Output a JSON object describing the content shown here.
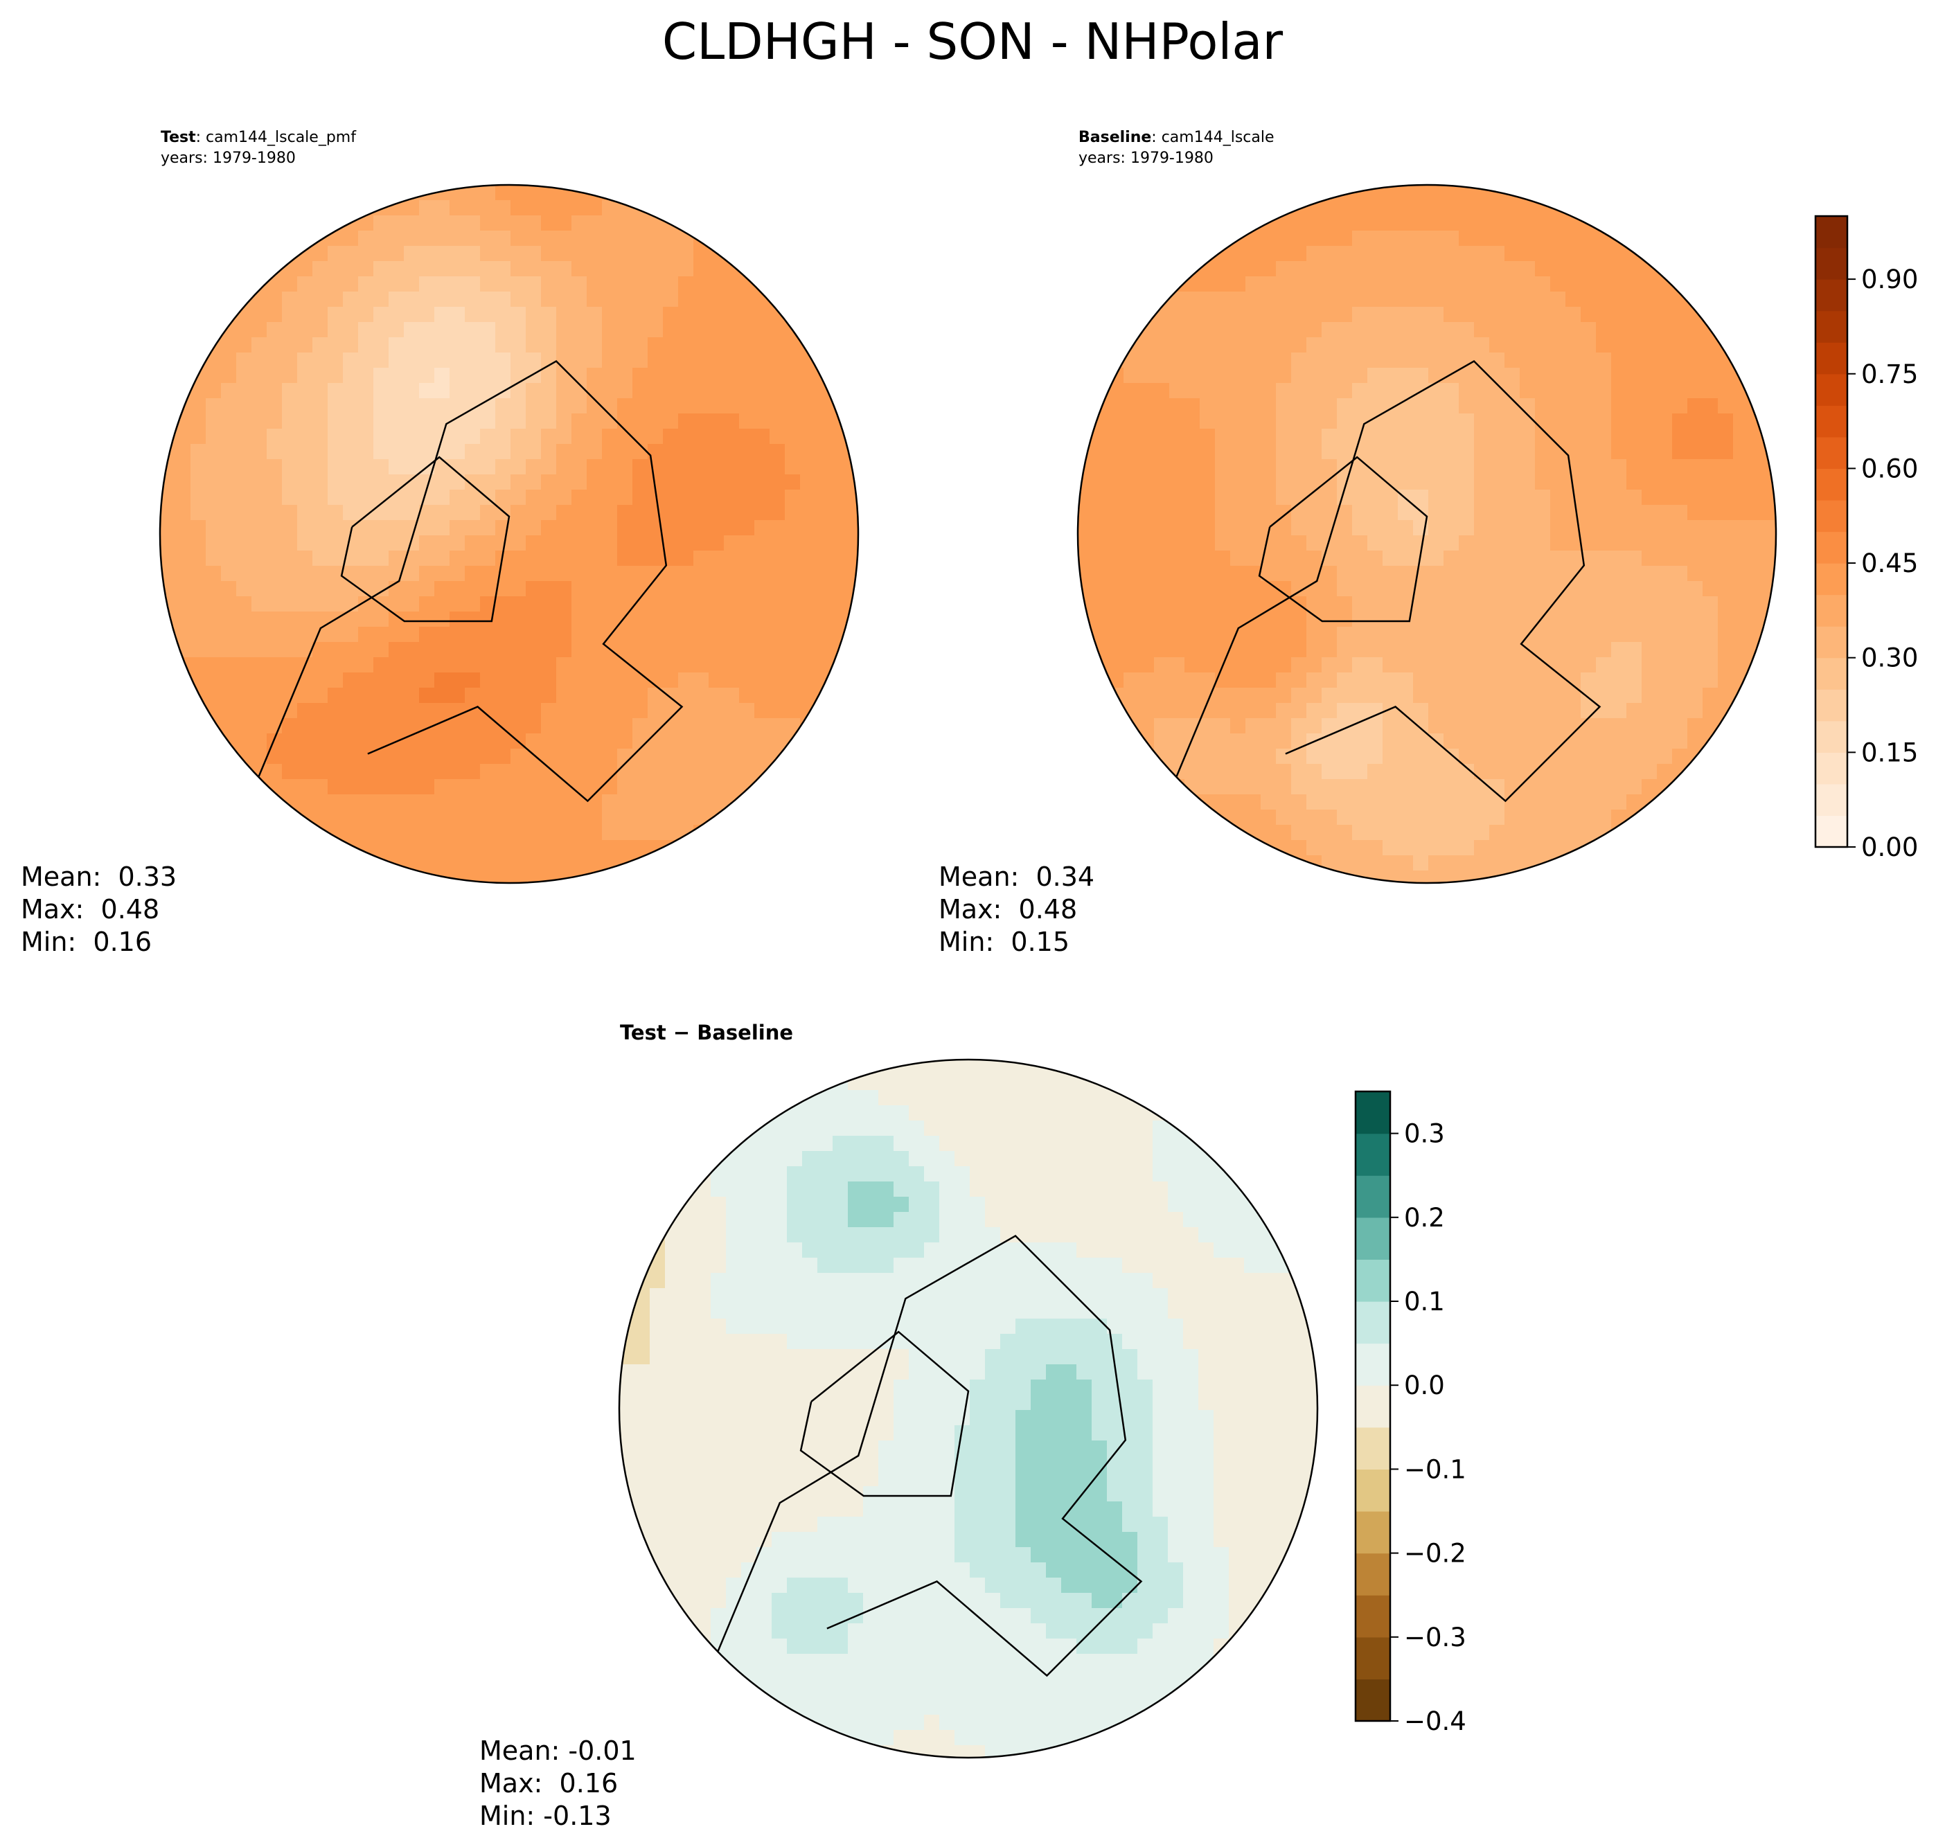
{
  "chart_data": {
    "title": "CLDHGH - SON - NHPolar",
    "type": "heatmap",
    "panels": [
      {
        "id": "test",
        "label_bold": "Test",
        "label_text": ": cam144_lscale_pmf",
        "years": "years: 1979-1980",
        "colormap": "Oranges",
        "stats": {
          "mean": "Mean:  0.33",
          "max": "Max:  0.48",
          "min": "Min:  0.16"
        },
        "mean": 0.33,
        "max": 0.48,
        "min": 0.16
      },
      {
        "id": "baseline",
        "label_bold": "Baseline",
        "label_text": ": cam144_lscale",
        "years": "years: 1979-1980",
        "colormap": "Oranges",
        "stats": {
          "mean": "Mean:  0.34",
          "max": "Max:  0.48",
          "min": "Min:  0.15"
        },
        "mean": 0.34,
        "max": 0.48,
        "min": 0.15
      },
      {
        "id": "diff",
        "title": "Test − Baseline",
        "colormap": "BrBG",
        "stats": {
          "mean": "Mean: -0.01",
          "max": "Max:  0.16",
          "min": "Min: -0.13"
        },
        "mean": -0.01,
        "max": 0.16,
        "min": -0.13
      }
    ],
    "colorbars": [
      {
        "for": "test-baseline",
        "range": [
          0.0,
          1.0
        ],
        "levels": 20,
        "ticks": [
          "0.00",
          "0.15",
          "0.30",
          "0.45",
          "0.60",
          "0.75",
          "0.90"
        ],
        "tick_values": [
          0.0,
          0.15,
          0.3,
          0.45,
          0.6,
          0.75,
          0.9
        ],
        "colors": [
          "#fff5eb",
          "#fee9d4",
          "#fddbb8",
          "#fdc997",
          "#fdb476",
          "#fd9f56",
          "#f8873b",
          "#ee6d23",
          "#dd5510",
          "#c74205",
          "#a83703",
          "#8f2d04",
          "#7f2704"
        ]
      },
      {
        "for": "diff",
        "range": [
          -0.4,
          0.35
        ],
        "levels": 15,
        "ticks": [
          "−0.4",
          "−0.3",
          "−0.2",
          "−0.1",
          "0.0",
          "0.1",
          "0.2",
          "0.3"
        ],
        "tick_values": [
          -0.4,
          -0.3,
          -0.2,
          -0.1,
          0.0,
          0.1,
          0.2,
          0.3
        ],
        "colors": [
          "#5c3608",
          "#7e4a0d",
          "#9a5b16",
          "#b67a2d",
          "#cfa04f",
          "#e0c47e",
          "#eedbac",
          "#f3eede",
          "#e4f2ee",
          "#c3e8e1",
          "#8fd2c5",
          "#5cb0a3",
          "#2e8a7e",
          "#0f6d60",
          "#01493c"
        ]
      }
    ]
  }
}
